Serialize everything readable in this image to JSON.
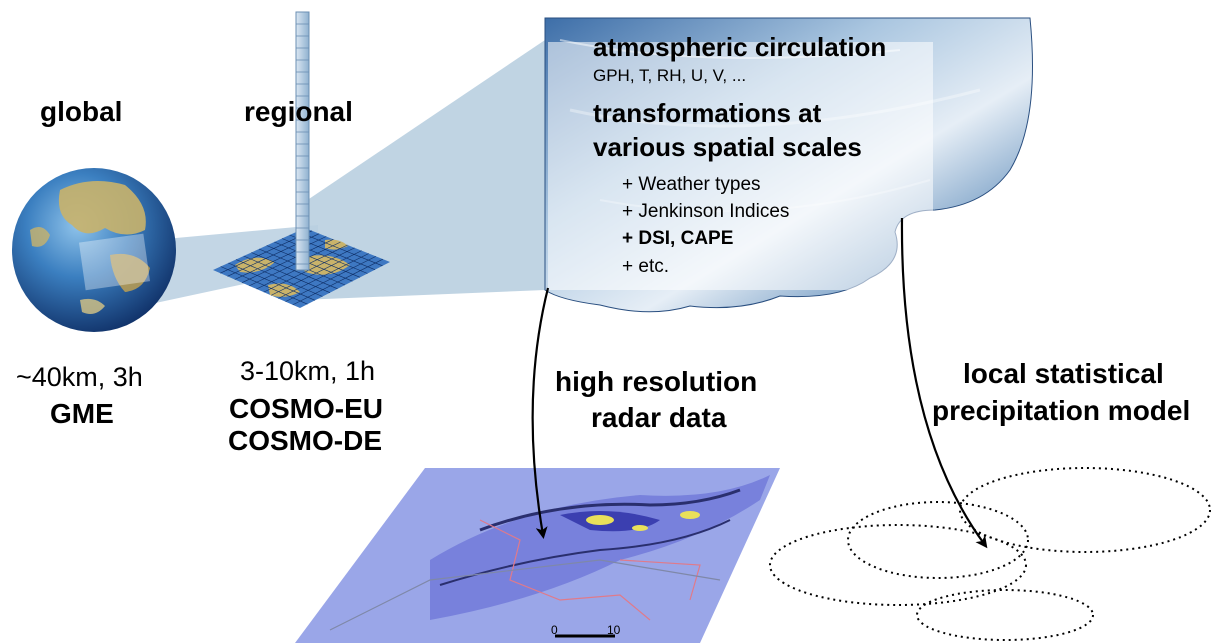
{
  "global": {
    "title": "global",
    "resolution": "~40km, 3h",
    "model": "GME"
  },
  "regional": {
    "title": "regional",
    "resolution": "3-10km, 1h",
    "models": [
      "COSMO-EU",
      "COSMO-DE"
    ]
  },
  "cloud": {
    "title": "atmospheric circulation",
    "variables": "GPH, T, RH, U, V, ...",
    "transform_line1": "transformations at",
    "transform_line2": "various spatial scales",
    "items": [
      "+ Weather types",
      "+ Jenkinson Indices",
      "+ DSI, CAPE",
      "+ etc."
    ]
  },
  "radar": {
    "line1": "high resolution",
    "line2": "radar data",
    "scale_labels": [
      "0",
      "10"
    ]
  },
  "local_model": {
    "line1": "local statistical",
    "line2": "precipitation model"
  },
  "colors": {
    "projection": "#b9cfe0",
    "ocean": "#2f6fb0",
    "land": "#c9b36a",
    "radar_bg": "#9aa6e8",
    "cloud": "#5a86b8"
  }
}
